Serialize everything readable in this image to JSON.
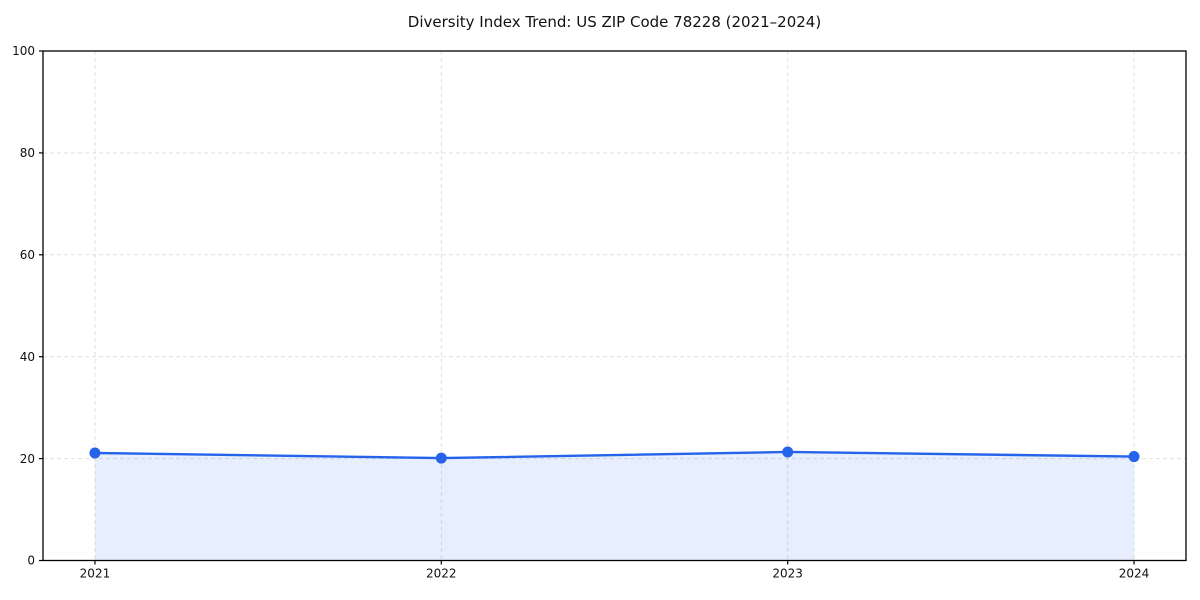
{
  "chart_data": {
    "type": "line",
    "title": "Diversity Index Trend: US ZIP Code 78228 (2021–2024)",
    "categories": [
      "2021",
      "2022",
      "2023",
      "2024"
    ],
    "series": [
      {
        "name": "Diversity Index",
        "values": [
          21.1,
          20.1,
          21.3,
          20.4
        ]
      }
    ],
    "xlabel": "",
    "ylabel": "",
    "ylim": [
      0,
      100
    ],
    "yticks": [
      0,
      20,
      40,
      60,
      80,
      100
    ],
    "grid": true,
    "legend": "none",
    "line_color": "#2563eb",
    "fill_color": "rgba(37,99,235,0.11)",
    "marker": "circle",
    "area_fill": true
  }
}
